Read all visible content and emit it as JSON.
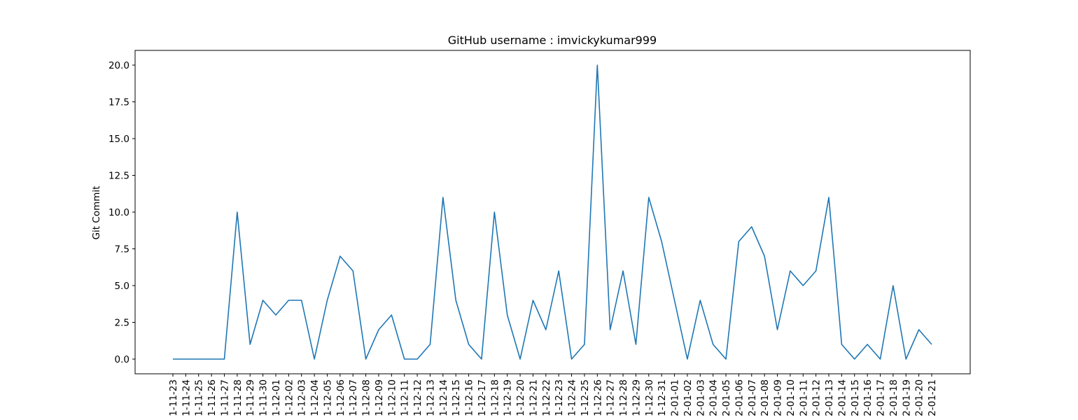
{
  "chart_data": {
    "type": "line",
    "title": "GitHub username : imvickykumar999",
    "xlabel": "",
    "ylabel": "Git Commit",
    "ylim": [
      -1,
      21
    ],
    "y_ticks": [
      0.0,
      2.5,
      5.0,
      7.5,
      10.0,
      12.5,
      15.0,
      17.5,
      20.0
    ],
    "y_tick_labels": [
      "0.0",
      "2.5",
      "5.0",
      "7.5",
      "10.0",
      "12.5",
      "15.0",
      "17.5",
      "20.0"
    ],
    "grid": false,
    "line_color": "#1f77b4",
    "categories": [
      "1-11-23",
      "1-11-24",
      "1-11-25",
      "1-11-26",
      "1-11-27",
      "1-11-28",
      "1-11-29",
      "1-11-30",
      "1-12-01",
      "1-12-02",
      "1-12-03",
      "1-12-04",
      "1-12-05",
      "1-12-06",
      "1-12-07",
      "1-12-08",
      "1-12-09",
      "1-12-10",
      "1-12-11",
      "1-12-12",
      "1-12-13",
      "1-12-14",
      "1-12-15",
      "1-12-16",
      "1-12-17",
      "1-12-18",
      "1-12-19",
      "1-12-20",
      "1-12-21",
      "1-12-22",
      "1-12-23",
      "1-12-24",
      "1-12-25",
      "1-12-26",
      "1-12-27",
      "1-12-28",
      "1-12-29",
      "1-12-30",
      "1-12-31",
      "2-01-01",
      "2-01-02",
      "2-01-03",
      "2-01-04",
      "2-01-05",
      "2-01-06",
      "2-01-07",
      "2-01-08",
      "2-01-09",
      "2-01-10",
      "2-01-11",
      "2-01-12",
      "2-01-13",
      "2-01-14",
      "2-01-15",
      "2-01-16",
      "2-01-17",
      "2-01-18",
      "2-01-19",
      "2-01-20",
      "2-01-21"
    ],
    "values": [
      0,
      0,
      0,
      0,
      0,
      10,
      1,
      4,
      3,
      4,
      4,
      0,
      4,
      7,
      6,
      0,
      2,
      3,
      0,
      0,
      1,
      11,
      4,
      1,
      0,
      10,
      3,
      0,
      4,
      2,
      6,
      0,
      1,
      20,
      2,
      6,
      1,
      11,
      8,
      4,
      0,
      4,
      1,
      0,
      8,
      9,
      7,
      2,
      6,
      5,
      6,
      11,
      1,
      0,
      1,
      0,
      5,
      0,
      2,
      1
    ]
  }
}
